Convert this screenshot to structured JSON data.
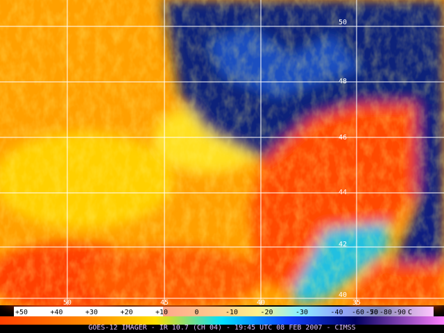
{
  "map": {
    "latitude_labels": [
      50,
      48,
      46,
      44,
      42,
      40
    ],
    "longitude_labels": [
      50,
      45,
      40,
      35
    ],
    "scale_labels": [
      "+50",
      "+40",
      "+30",
      "+20",
      "+10",
      "0",
      "-10",
      "-20",
      "-30",
      "-40",
      "-50",
      "-60",
      "-70",
      "-80",
      "-90",
      "C"
    ],
    "caption": "GOES-12 IMAGER - IR 10.7 (CH 04) - 19:45 UTC 08 FEB 2007 - CIMSS"
  }
}
